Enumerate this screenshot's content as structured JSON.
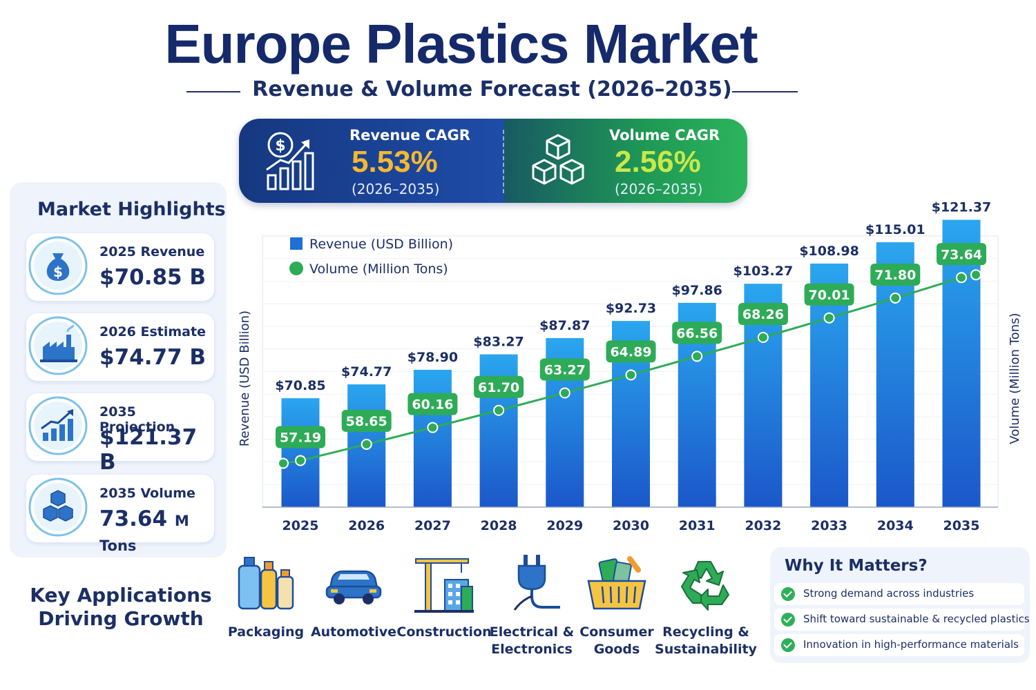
{
  "header": {
    "title": "Europe Plastics Market",
    "subtitle": "Revenue & Volume Forecast (2026–2035)"
  },
  "cagr": {
    "revenue": {
      "label": "Revenue CAGR",
      "value": "5.53%",
      "period": "(2026–2035)",
      "icon": "dollar-growth-icon",
      "color": "#f5b82e"
    },
    "volume": {
      "label": "Volume CAGR",
      "value": "2.56%",
      "period": "(2026–2035)",
      "icon": "cubes-icon",
      "color": "#c9e84a"
    }
  },
  "highlights": {
    "title": "Market Highlights",
    "items": [
      {
        "label": "2025 Revenue",
        "value": "$70.85 B",
        "unit": "",
        "icon": "money-bag-icon"
      },
      {
        "label": "2026 Estimate",
        "value": "$74.77 B",
        "unit": "",
        "icon": "factory-icon"
      },
      {
        "label": "2035 Projection",
        "value": "$121.37 B",
        "unit": "",
        "icon": "growth-chart-icon"
      },
      {
        "label": "2035 Volume",
        "value": "73.64",
        "unit": "M Tons",
        "icon": "cubes-icon"
      }
    ]
  },
  "chart_data": {
    "type": "bar",
    "categories": [
      "2025",
      "2026",
      "2027",
      "2028",
      "2029",
      "2030",
      "2031",
      "2032",
      "2033",
      "2034",
      "2035"
    ],
    "series": [
      {
        "name": "Revenue (USD Billion)",
        "type": "bar",
        "values": [
          70.85,
          74.77,
          78.9,
          83.27,
          87.87,
          92.73,
          97.86,
          103.27,
          108.98,
          115.01,
          121.37
        ],
        "labels": [
          "$70.85",
          "$74.77",
          "$78.90",
          "$83.27",
          "$87.87",
          "$92.73",
          "$97.86",
          "$103.27",
          "$108.98",
          "$115.01",
          "$121.37"
        ],
        "color": "#1f6fd6"
      },
      {
        "name": "Volume (Million Tons)",
        "type": "line",
        "values": [
          57.19,
          58.65,
          60.16,
          61.7,
          63.27,
          64.89,
          66.56,
          68.26,
          70.01,
          71.8,
          73.64
        ],
        "labels": [
          "57.19",
          "58.65",
          "60.16",
          "61.70",
          "63.27",
          "64.89",
          "66.56",
          "68.26",
          "70.01",
          "71.80",
          "73.64"
        ],
        "color": "#2eab57"
      }
    ],
    "ylabel_left": "Revenue (USD Billion)",
    "ylabel_right": "Volume (Million Tons)",
    "ylim": [
      40,
      125
    ],
    "y2lim": [
      53,
      78
    ],
    "legend_position": "top-left",
    "grid": true
  },
  "applications": {
    "title_line1": "Key Applications",
    "title_line2": "Driving Growth",
    "items": [
      {
        "label1": "Packaging",
        "label2": "",
        "icon": "bottles-icon"
      },
      {
        "label1": "Automotive",
        "label2": "",
        "icon": "car-icon"
      },
      {
        "label1": "Construction",
        "label2": "",
        "icon": "crane-icon"
      },
      {
        "label1": "Electrical &",
        "label2": "Electronics",
        "icon": "plug-icon"
      },
      {
        "label1": "Consumer",
        "label2": "Goods",
        "icon": "basket-icon"
      },
      {
        "label1": "Recycling &",
        "label2": "Sustainability",
        "icon": "recycle-icon"
      }
    ]
  },
  "why": {
    "title": "Why It Matters?",
    "items": [
      "Strong demand across industries",
      "Shift toward sustainable & recycled plastics",
      "Innovation in high-performance materials"
    ]
  }
}
